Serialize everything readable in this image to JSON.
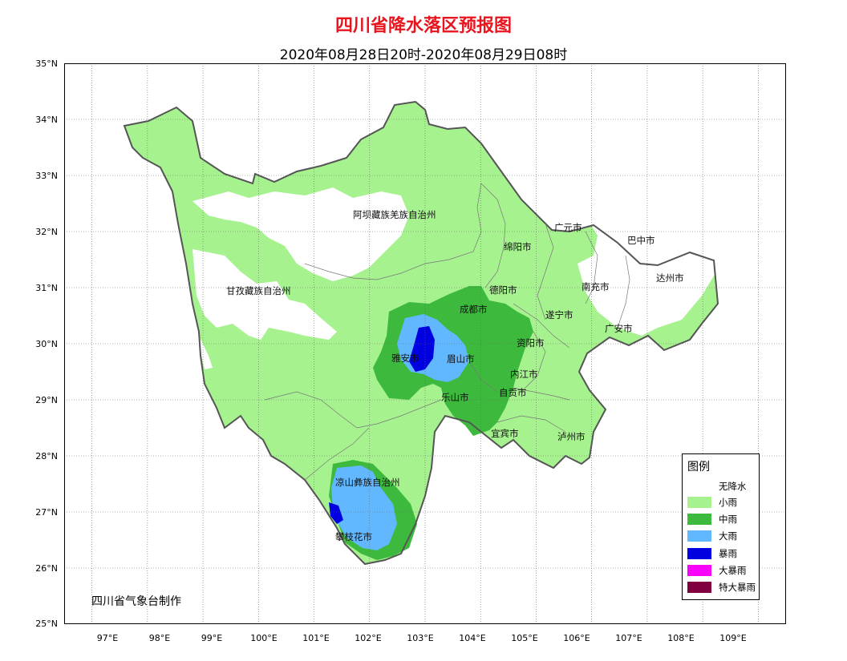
{
  "title": "四川省降水落区预报图",
  "subtitle": "2020年08月28日20时-2020年08月29日08时",
  "credit": "四川省气象台制作",
  "map": {
    "lon_range": [
      96.5,
      109.5
    ],
    "lat_range": [
      25,
      35
    ],
    "lon_ticks": [
      "97°E",
      "98°E",
      "99°E",
      "100°E",
      "101°E",
      "102°E",
      "103°E",
      "104°E",
      "105°E",
      "106°E",
      "107°E",
      "108°E",
      "109°E"
    ],
    "lat_ticks": [
      "35°N",
      "34°N",
      "33°N",
      "32°N",
      "31°N",
      "30°N",
      "29°N",
      "28°N",
      "27°N",
      "26°N",
      "25°N"
    ],
    "grid": "dotted"
  },
  "regions": [
    {
      "name": "阿坝藏族羌族自治州",
      "lon": 101.5,
      "lat": 32.3
    },
    {
      "name": "甘孜藏族自治州",
      "lon": 99.7,
      "lat": 31.0
    },
    {
      "name": "凉山彝族自治州",
      "lon": 101.1,
      "lat": 27.55
    },
    {
      "name": "攀枝花市",
      "lon": 101.2,
      "lat": 26.6
    },
    {
      "name": "广元市",
      "lon": 105.3,
      "lat": 32.1
    },
    {
      "name": "巴中市",
      "lon": 106.7,
      "lat": 31.85
    },
    {
      "name": "绵阳市",
      "lon": 104.4,
      "lat": 31.75
    },
    {
      "name": "达州市",
      "lon": 107.5,
      "lat": 31.2
    },
    {
      "name": "德阳市",
      "lon": 104.1,
      "lat": 31.0
    },
    {
      "name": "南充市",
      "lon": 106.2,
      "lat": 31.05
    },
    {
      "name": "成都市",
      "lon": 103.75,
      "lat": 30.65
    },
    {
      "name": "遂宁市",
      "lon": 105.2,
      "lat": 30.5
    },
    {
      "name": "广安市",
      "lon": 106.7,
      "lat": 30.25
    },
    {
      "name": "资阳市",
      "lon": 104.75,
      "lat": 30.02
    },
    {
      "name": "雅安市",
      "lon": 102.4,
      "lat": 29.8
    },
    {
      "name": "眉山市",
      "lon": 103.4,
      "lat": 29.8
    },
    {
      "name": "内江市",
      "lon": 104.55,
      "lat": 29.48
    },
    {
      "name": "自贡市",
      "lon": 104.35,
      "lat": 29.15
    },
    {
      "name": "乐山市",
      "lon": 103.3,
      "lat": 29.07
    },
    {
      "name": "宜宾市",
      "lon": 104.2,
      "lat": 28.45
    },
    {
      "name": "泸州市",
      "lon": 105.5,
      "lat": 28.4
    }
  ],
  "legend": {
    "title": "图例",
    "items": [
      {
        "label": "无降水",
        "color": "#ffffff"
      },
      {
        "label": "小雨",
        "color": "#a6f28f"
      },
      {
        "label": "中雨",
        "color": "#3dba3d"
      },
      {
        "label": "大雨",
        "color": "#61b8ff"
      },
      {
        "label": "暴雨",
        "color": "#0000e1"
      },
      {
        "label": "大暴雨",
        "color": "#fa00fa"
      },
      {
        "label": "特大暴雨",
        "color": "#800040"
      }
    ]
  }
}
